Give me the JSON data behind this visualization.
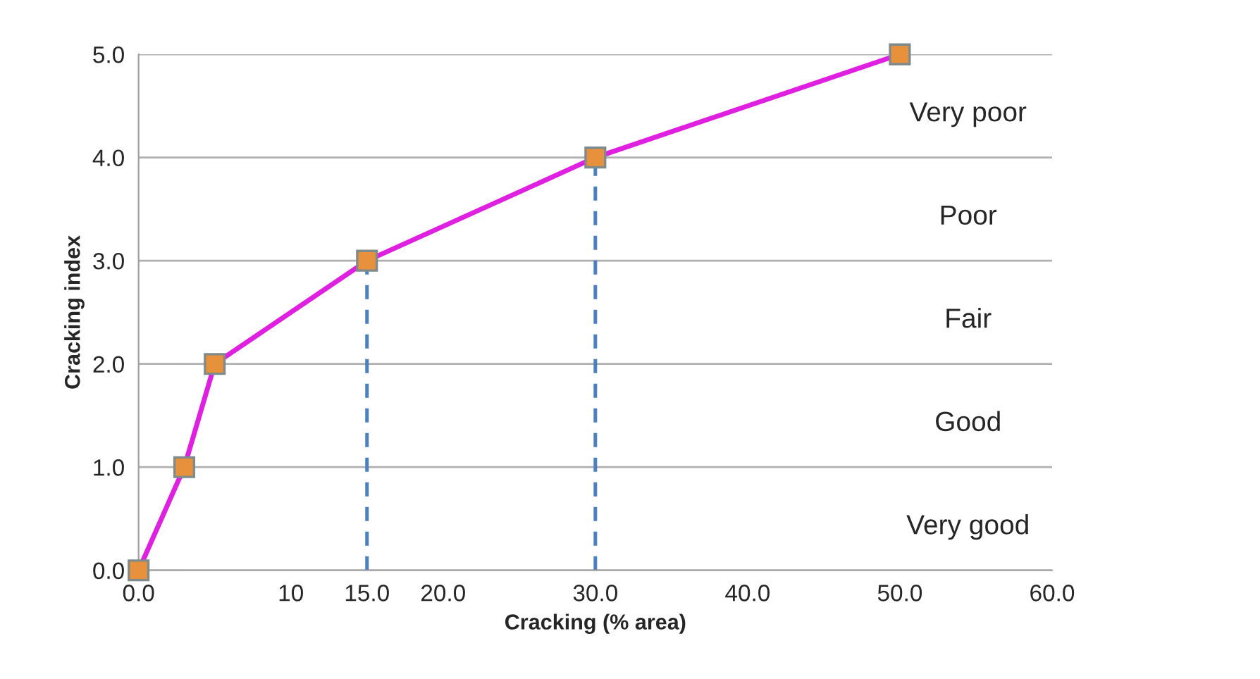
{
  "chart_data": {
    "type": "line",
    "xlabel": "Cracking (% area)",
    "ylabel": "Cracking index",
    "series": [
      {
        "x": [
          0,
          3,
          5,
          15,
          30,
          50
        ],
        "values": [
          0,
          1,
          2,
          3,
          4,
          5
        ],
        "color": "#e020e0",
        "marker": "square"
      },
      {
        "x": [
          15,
          15
        ],
        "values": [
          0,
          3
        ],
        "color": "#4a7fc0",
        "line_style": "dashed",
        "marker": "none"
      },
      {
        "x": [
          30,
          30
        ],
        "values": [
          0,
          4
        ],
        "color": "#4a7fc0",
        "line_style": "dashed",
        "marker": "none"
      }
    ],
    "xlim": [
      0,
      60
    ],
    "ylim": [
      0,
      5
    ],
    "xticks": [
      {
        "value": 0,
        "label": "0.0"
      },
      10,
      {
        "value": 15,
        "label": "15.0"
      },
      {
        "value": 20,
        "label": "20.0"
      },
      {
        "value": 30,
        "label": "30.0"
      },
      {
        "value": 40,
        "label": "40.0"
      },
      {
        "value": 50,
        "label": "50.0"
      },
      {
        "value": 60,
        "label": "60.0"
      }
    ],
    "yticks": [
      {
        "value": 0,
        "label": "0.0"
      },
      {
        "value": 1,
        "label": "1.0"
      },
      {
        "value": 2,
        "label": "2.0"
      },
      {
        "value": 3,
        "label": "3.0"
      },
      {
        "value": 4,
        "label": "4.0"
      },
      {
        "value": 5,
        "label": "5.0"
      }
    ],
    "grid": "y",
    "annotations": [
      "Very poor",
      "Poor",
      "Fair",
      "Good",
      "Very good"
    ]
  }
}
